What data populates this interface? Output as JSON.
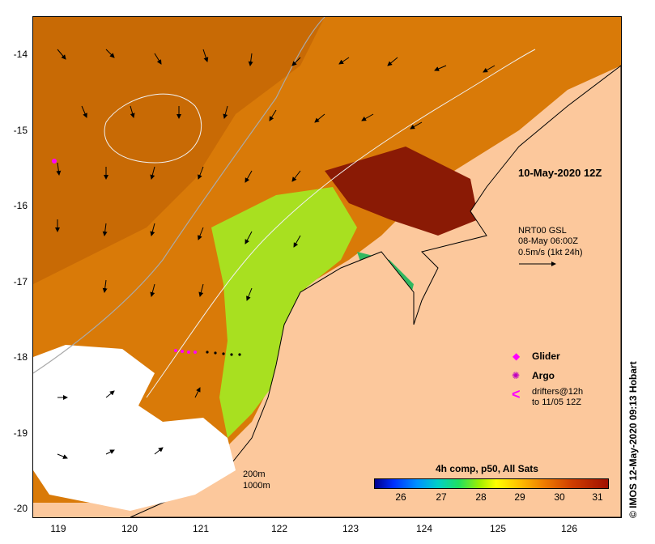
{
  "map": {
    "y_ticks": [
      "-14",
      "-15",
      "-16",
      "-17",
      "-18",
      "-19",
      "-20"
    ],
    "x_ticks": [
      "119",
      "120",
      "121",
      "122",
      "123",
      "124",
      "125",
      "126"
    ],
    "date_label": "10-May-2020 12Z",
    "current_source": [
      "NRT00 GSL",
      "08-May 06:00Z",
      "0.5m/s (1kt 24h)"
    ],
    "depth_labels": [
      "200m",
      "1000m"
    ],
    "legend": {
      "glider": "Glider",
      "argo": "Argo",
      "drifters_line1": "drifters@12h",
      "drifters_line2": "to 11/05 12Z"
    },
    "colorbar": {
      "title": "4h comp, p50, All Sats",
      "ticks": [
        "26",
        "27",
        "28",
        "29",
        "30",
        "31"
      ]
    },
    "credit": "© IMOS 12-May-2020 09:13 Hobart",
    "colors": {
      "land": "#fcc89c",
      "warm": "#d97a08",
      "hot": "#8a1a05",
      "cool": "#a8e020",
      "glider": "#ff00ff",
      "argo": "#c000c0"
    }
  }
}
